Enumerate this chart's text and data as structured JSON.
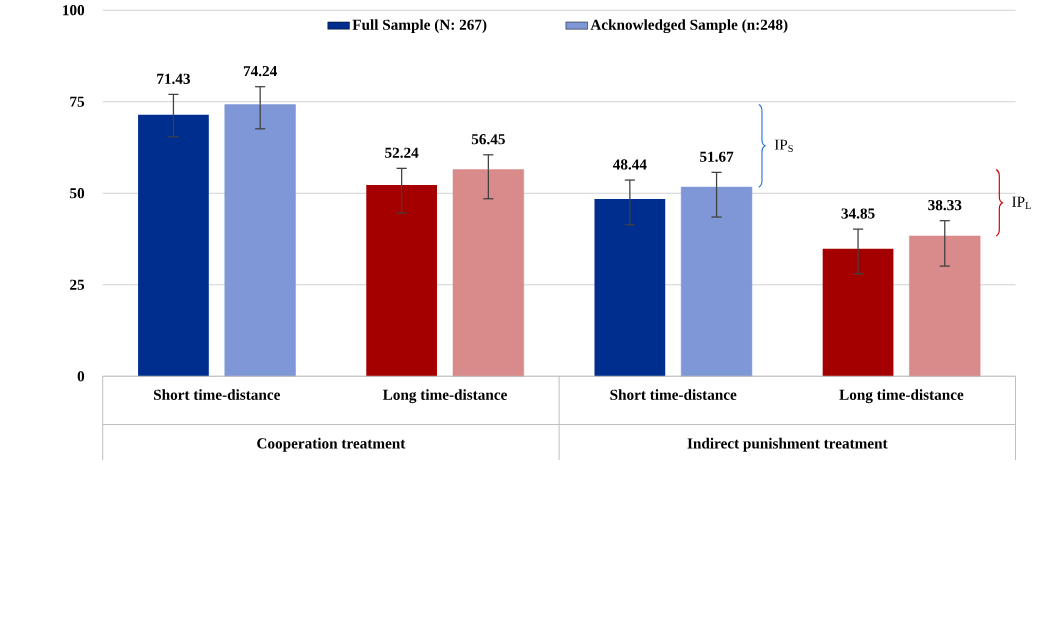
{
  "chart_data": {
    "type": "bar",
    "categories": [
      "Short time-distance",
      "Long time-distance",
      "Short time-distance",
      "Long time-distance"
    ],
    "series": [
      {
        "name": "Full Sample (N: 267)",
        "colors": [
          "#002e8f",
          "#a50000",
          "#002e8f",
          "#a50000"
        ],
        "values": [
          71.43,
          52.24,
          48.44,
          34.85
        ],
        "errors": [
          [
            65.4,
            77.0
          ],
          [
            44.6,
            56.8
          ],
          [
            41.4,
            53.6
          ],
          [
            28.0,
            40.2
          ]
        ]
      },
      {
        "name": "Acknowledged Sample (n:248)",
        "colors": [
          "#7f97d6",
          "#d98a8a",
          "#7f97d6",
          "#d98a8a"
        ],
        "values": [
          74.24,
          56.45,
          51.67,
          38.33
        ],
        "errors": [
          [
            67.6,
            79.1
          ],
          [
            48.5,
            60.5
          ],
          [
            43.5,
            55.7
          ],
          [
            30.1,
            42.5
          ]
        ]
      }
    ],
    "annotations": [
      "Cooperation treatment",
      "Indirect punishment treatment",
      "IP$_{S}$",
      "IP$_{L}$"
    ],
    "ylim": [
      0,
      100
    ],
    "yticks": [
      0,
      25,
      50,
      75,
      100
    ],
    "grid": "y",
    "legend": "top",
    "data_labels": true
  }
}
